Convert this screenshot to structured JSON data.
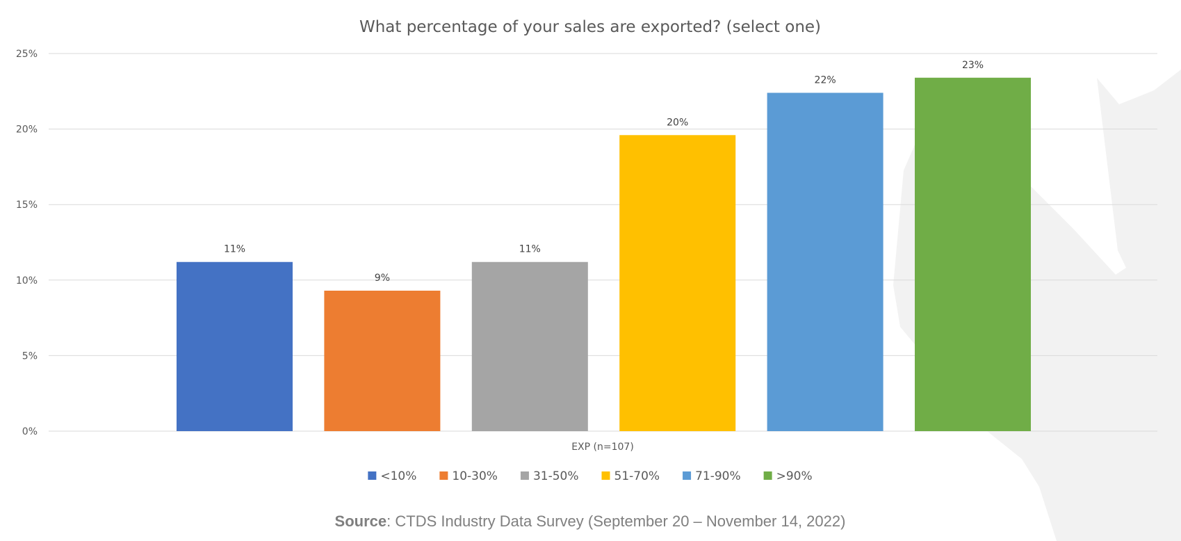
{
  "chart_data": {
    "type": "bar",
    "title": "What percentage of your sales are exported? (select one)",
    "categories": [
      "EXP (n=107)"
    ],
    "series": [
      {
        "name": "<10%",
        "values": [
          11.2
        ],
        "label": "11%",
        "color": "#4472C4"
      },
      {
        "name": "10-30%",
        "values": [
          9.3
        ],
        "label": "9%",
        "color": "#ED7D31"
      },
      {
        "name": "31-50%",
        "values": [
          11.2
        ],
        "label": "11%",
        "color": "#A5A5A5"
      },
      {
        "name": "51-70%",
        "values": [
          19.6
        ],
        "label": "20%",
        "color": "#FFC000"
      },
      {
        "name": "71-90%",
        "values": [
          22.4
        ],
        "label": "22%",
        "color": "#5B9BD5"
      },
      {
        "name": ">90%",
        "values": [
          23.4
        ],
        "label": "23%",
        "color": "#70AD47"
      }
    ],
    "ylim": [
      0,
      25
    ],
    "yticks": [
      0,
      5,
      10,
      15,
      20,
      25
    ],
    "ytick_labels": [
      "0%",
      "5%",
      "10%",
      "15%",
      "20%",
      "25%"
    ],
    "xlabel": "",
    "ylabel": "",
    "grid": true,
    "legend": "bottom-center"
  },
  "source": {
    "bold": "Source",
    "text": ": CTDS Industry Data Survey (September 20 – November 14, 2022)"
  }
}
